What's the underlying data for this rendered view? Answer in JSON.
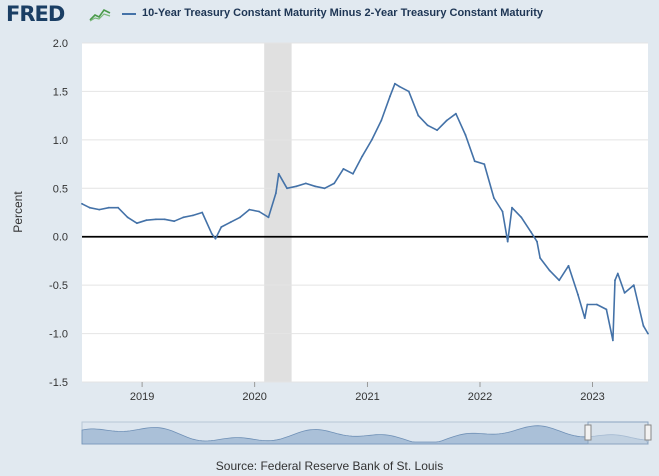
{
  "header": {
    "logo_text": "FRED",
    "logo_icon": "line-graph-icon",
    "series_title": "10-Year Treasury Constant Maturity Minus 2-Year Treasury Constant Maturity"
  },
  "source_note": "Source: Federal Reserve Bank of St. Louis",
  "colors": {
    "series": "#4472a8",
    "recession": "#e0e0e0",
    "zero_line": "#000000",
    "page_background": "#e1e9f0",
    "plot_background": "#ffffff",
    "navigator_fill": "#aac0d8",
    "navigator_window": "#d4dfea"
  },
  "chart_data": {
    "type": "line",
    "ylabel": "Percent",
    "xlabel": "",
    "ylim": [
      -1.5,
      2.0
    ],
    "xlim": [
      "2018-06-20",
      "2023-06-30"
    ],
    "y_ticks": [
      "2.0",
      "1.5",
      "1.0",
      "0.5",
      "0.0",
      "-0.5",
      "-1.0",
      "-1.5"
    ],
    "x_ticks": [
      "2019",
      "2020",
      "2021",
      "2022",
      "2023"
    ],
    "grid": "horizontal",
    "legend": "top-left",
    "recessions": [
      {
        "start": "2020-02-01",
        "end": "2020-04-30"
      }
    ],
    "reference_lines": [
      {
        "y": 0.0
      }
    ],
    "series": [
      {
        "name": "10-Year Treasury Constant Maturity Minus 2-Year Treasury Constant Maturity",
        "x": [
          "2018-06-20",
          "2018-07-15",
          "2018-08-15",
          "2018-09-15",
          "2018-10-15",
          "2018-11-15",
          "2018-12-15",
          "2019-01-15",
          "2019-02-15",
          "2019-03-15",
          "2019-04-15",
          "2019-05-15",
          "2019-06-15",
          "2019-07-15",
          "2019-08-15",
          "2019-08-27",
          "2019-09-15",
          "2019-10-15",
          "2019-11-15",
          "2019-12-15",
          "2020-01-15",
          "2020-02-15",
          "2020-03-10",
          "2020-03-19",
          "2020-04-15",
          "2020-05-15",
          "2020-06-15",
          "2020-07-15",
          "2020-08-15",
          "2020-09-15",
          "2020-10-15",
          "2020-11-15",
          "2020-12-15",
          "2021-01-15",
          "2021-02-15",
          "2021-03-15",
          "2021-03-31",
          "2021-04-15",
          "2021-05-15",
          "2021-06-15",
          "2021-07-15",
          "2021-08-15",
          "2021-09-15",
          "2021-10-15",
          "2021-11-15",
          "2021-12-15",
          "2022-01-15",
          "2022-02-15",
          "2022-03-15",
          "2022-04-01",
          "2022-04-15",
          "2022-05-15",
          "2022-06-15",
          "2022-07-05",
          "2022-07-15",
          "2022-08-15",
          "2022-09-15",
          "2022-10-15",
          "2022-11-15",
          "2022-12-07",
          "2022-12-15",
          "2023-01-15",
          "2023-02-15",
          "2023-03-08",
          "2023-03-15",
          "2023-03-24",
          "2023-04-15",
          "2023-05-15",
          "2023-06-15",
          "2023-06-30"
        ],
        "y": [
          0.34,
          0.3,
          0.28,
          0.3,
          0.3,
          0.2,
          0.14,
          0.17,
          0.18,
          0.18,
          0.16,
          0.2,
          0.22,
          0.25,
          0.03,
          -0.02,
          0.1,
          0.15,
          0.2,
          0.28,
          0.26,
          0.2,
          0.45,
          0.65,
          0.5,
          0.52,
          0.55,
          0.52,
          0.5,
          0.55,
          0.7,
          0.65,
          0.83,
          1.0,
          1.2,
          1.45,
          1.58,
          1.55,
          1.5,
          1.25,
          1.15,
          1.1,
          1.2,
          1.27,
          1.05,
          0.78,
          0.75,
          0.4,
          0.26,
          -0.05,
          0.3,
          0.2,
          0.05,
          -0.05,
          -0.22,
          -0.35,
          -0.45,
          -0.3,
          -0.6,
          -0.84,
          -0.7,
          -0.7,
          -0.75,
          -1.07,
          -0.45,
          -0.38,
          -0.58,
          -0.5,
          -0.92,
          -1.0
        ]
      }
    ]
  }
}
